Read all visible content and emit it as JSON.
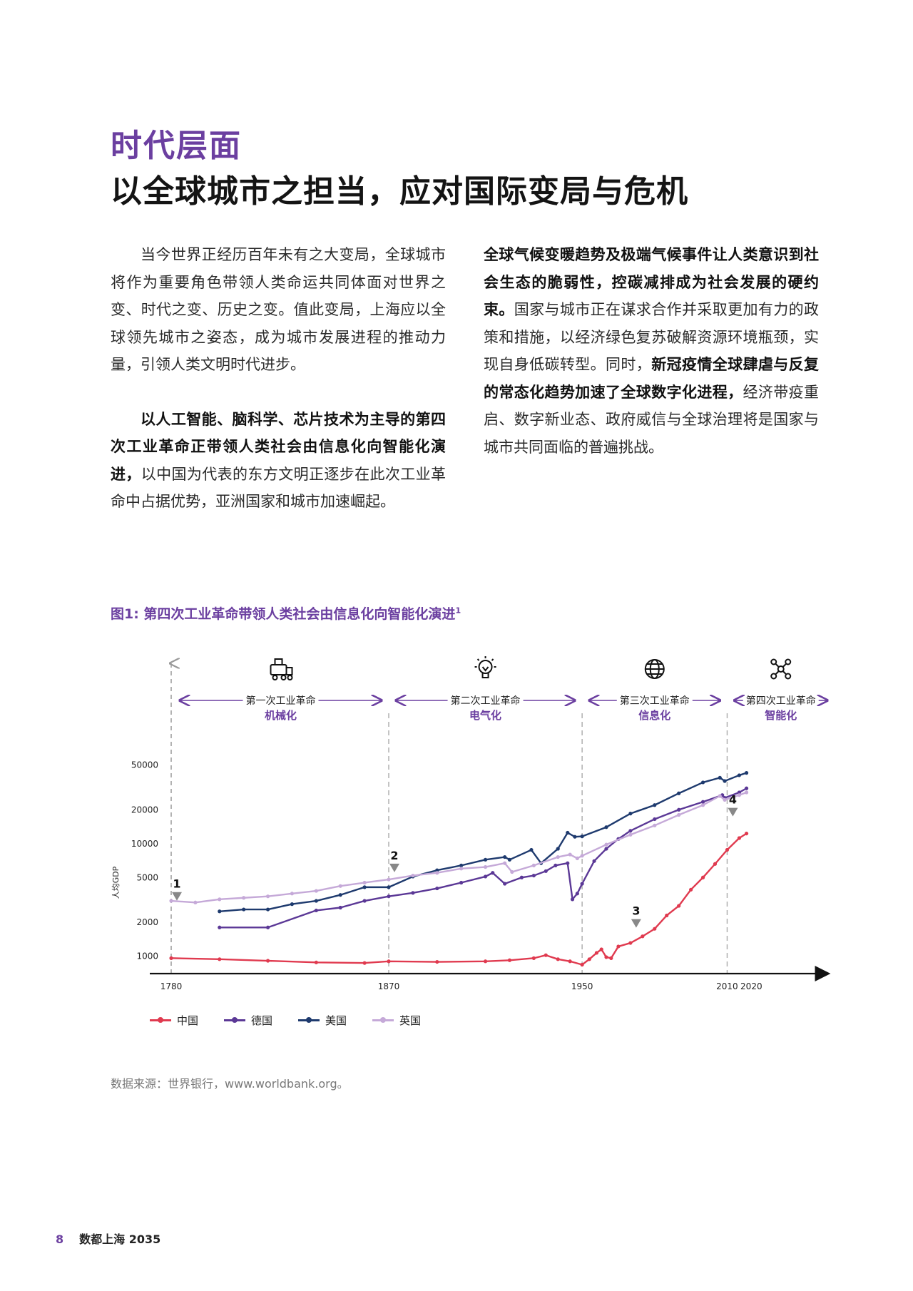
{
  "heading": {
    "kicker": "时代层面",
    "title": "以全球城市之担当，应对国际变局与危机"
  },
  "left_column": {
    "p1": "当今世界正经历百年未有之大变局，全球城市将作为重要角色带领人类命运共同体面对世界之变、时代之变、历史之变。值此变局，上海应以全球领先城市之姿态，成为城市发展进程的推动力量，引领人类文明时代进步。",
    "p2_bold": "以人工智能、脑科学、芯片技术为主导的第四次工业革命正带领人类社会由信息化向智能化演进，",
    "p2_rest": "以中国为代表的东方文明正逐步在此次工业革命中占据优势，亚洲国家和城市加速崛起。"
  },
  "right_column": {
    "b1": "全球气候变暖趋势及极端气候事件让人类意识到社会生态的脆弱性，控碳减排成为社会发展的硬约束。",
    "t1": "国家与城市正在谋求合作并采取更加有力的政策和措施，以经济绿色复苏破解资源环境瓶颈，实现自身低碳转型。同时，",
    "b2": "新冠疫情全球肆虐与反复的常态化趋势加速了全球数字化进程，",
    "t2": "经济带疫重启、数字新业态、政府威信与全球治理将是国家与城市共同面临的普遍挑战。"
  },
  "figure": {
    "title": "图1: 第四次工业革命带领人类社会由信息化向智能化演进",
    "footnote_mark": "1"
  },
  "chart_data": {
    "type": "line",
    "title": "图1: 第四次工业革命带领人类社会由信息化向智能化演进",
    "xlabel": "",
    "ylabel": "人均GDP",
    "y_scale": "log",
    "xlim": [
      1780,
      2050
    ],
    "ylim": [
      700,
      60000
    ],
    "x_ticks": [
      1780,
      1870,
      1950,
      2010,
      2020
    ],
    "y_ticks": [
      1000,
      2000,
      5000,
      10000,
      20000,
      50000
    ],
    "grid": false,
    "legend_position": "bottom",
    "eras": [
      {
        "name": "第一次工业革命",
        "theme": "机械化",
        "start": 1780,
        "end": 1870,
        "icon": "steam-train-icon"
      },
      {
        "name": "第二次工业革命",
        "theme": "电气化",
        "start": 1870,
        "end": 1950,
        "icon": "lightbulb-icon"
      },
      {
        "name": "第三次工业革命",
        "theme": "信息化",
        "start": 1950,
        "end": 2010,
        "icon": "globe-icon"
      },
      {
        "name": "第四次工业革命",
        "theme": "智能化",
        "start": 2010,
        "end": 2050,
        "icon": "network-icon"
      }
    ],
    "annotations": [
      {
        "label": "1",
        "x": 1780,
        "y": 3300
      },
      {
        "label": "2",
        "x": 1870,
        "y": 5900
      },
      {
        "label": "3",
        "x": 1970,
        "y": 1900
      },
      {
        "label": "4",
        "x": 2010,
        "y": 18500
      }
    ],
    "series": [
      {
        "name": "中国",
        "color": "#e03a4f",
        "points": [
          [
            1780,
            960
          ],
          [
            1800,
            940
          ],
          [
            1820,
            910
          ],
          [
            1840,
            880
          ],
          [
            1860,
            870
          ],
          [
            1870,
            900
          ],
          [
            1890,
            890
          ],
          [
            1910,
            900
          ],
          [
            1920,
            920
          ],
          [
            1930,
            960
          ],
          [
            1935,
            1020
          ],
          [
            1940,
            940
          ],
          [
            1945,
            900
          ],
          [
            1950,
            840
          ],
          [
            1953,
            940
          ],
          [
            1956,
            1070
          ],
          [
            1958,
            1150
          ],
          [
            1960,
            980
          ],
          [
            1962,
            960
          ],
          [
            1965,
            1220
          ],
          [
            1970,
            1310
          ],
          [
            1975,
            1500
          ],
          [
            1980,
            1750
          ],
          [
            1985,
            2300
          ],
          [
            1990,
            2800
          ],
          [
            1995,
            3900
          ],
          [
            2000,
            5000
          ],
          [
            2005,
            6600
          ],
          [
            2010,
            8800
          ],
          [
            2015,
            11200
          ],
          [
            2018,
            12300
          ]
        ]
      },
      {
        "name": "德国",
        "color": "#5b3896",
        "points": [
          [
            1800,
            1800
          ],
          [
            1820,
            1800
          ],
          [
            1840,
            2550
          ],
          [
            1850,
            2700
          ],
          [
            1860,
            3100
          ],
          [
            1870,
            3400
          ],
          [
            1880,
            3650
          ],
          [
            1890,
            4000
          ],
          [
            1900,
            4500
          ],
          [
            1910,
            5100
          ],
          [
            1913,
            5500
          ],
          [
            1918,
            4400
          ],
          [
            1925,
            5000
          ],
          [
            1930,
            5200
          ],
          [
            1935,
            5700
          ],
          [
            1939,
            6400
          ],
          [
            1944,
            6700
          ],
          [
            1946,
            3200
          ],
          [
            1948,
            3600
          ],
          [
            1950,
            4400
          ],
          [
            1955,
            7000
          ],
          [
            1960,
            9000
          ],
          [
            1965,
            11000
          ],
          [
            1970,
            13000
          ],
          [
            1980,
            16500
          ],
          [
            1990,
            20000
          ],
          [
            2000,
            23500
          ],
          [
            2008,
            27000
          ],
          [
            2009,
            25500
          ],
          [
            2015,
            28500
          ],
          [
            2018,
            31000
          ]
        ]
      },
      {
        "name": "美国",
        "color": "#1e3a6e",
        "points": [
          [
            1800,
            2500
          ],
          [
            1810,
            2600
          ],
          [
            1820,
            2600
          ],
          [
            1830,
            2900
          ],
          [
            1840,
            3100
          ],
          [
            1850,
            3500
          ],
          [
            1860,
            4100
          ],
          [
            1870,
            4100
          ],
          [
            1880,
            5100
          ],
          [
            1890,
            5800
          ],
          [
            1900,
            6400
          ],
          [
            1910,
            7200
          ],
          [
            1918,
            7600
          ],
          [
            1920,
            7200
          ],
          [
            1929,
            8800
          ],
          [
            1933,
            6700
          ],
          [
            1940,
            9000
          ],
          [
            1944,
            12500
          ],
          [
            1947,
            11500
          ],
          [
            1950,
            11600
          ],
          [
            1960,
            14000
          ],
          [
            1970,
            18500
          ],
          [
            1980,
            22000
          ],
          [
            1990,
            28000
          ],
          [
            2000,
            35000
          ],
          [
            2007,
            38500
          ],
          [
            2009,
            36000
          ],
          [
            2015,
            40500
          ],
          [
            2018,
            42500
          ]
        ]
      },
      {
        "name": "英国",
        "color": "#c5a9d8",
        "points": [
          [
            1780,
            3100
          ],
          [
            1790,
            3000
          ],
          [
            1800,
            3200
          ],
          [
            1810,
            3300
          ],
          [
            1820,
            3400
          ],
          [
            1830,
            3600
          ],
          [
            1840,
            3800
          ],
          [
            1850,
            4200
          ],
          [
            1860,
            4500
          ],
          [
            1870,
            4800
          ],
          [
            1880,
            5200
          ],
          [
            1890,
            5500
          ],
          [
            1900,
            6000
          ],
          [
            1910,
            6200
          ],
          [
            1918,
            6700
          ],
          [
            1921,
            5600
          ],
          [
            1930,
            6400
          ],
          [
            1940,
            7600
          ],
          [
            1945,
            8000
          ],
          [
            1948,
            7400
          ],
          [
            1950,
            7800
          ],
          [
            1960,
            9800
          ],
          [
            1970,
            12000
          ],
          [
            1980,
            14500
          ],
          [
            1990,
            18000
          ],
          [
            2000,
            22000
          ],
          [
            2007,
            26500
          ],
          [
            2009,
            24500
          ],
          [
            2015,
            27000
          ],
          [
            2018,
            28500
          ]
        ]
      }
    ]
  },
  "source": "数据来源：世界银行，www.worldbank.org。",
  "footer": {
    "page_number": "8",
    "doc_title": "数都上海 2035"
  }
}
